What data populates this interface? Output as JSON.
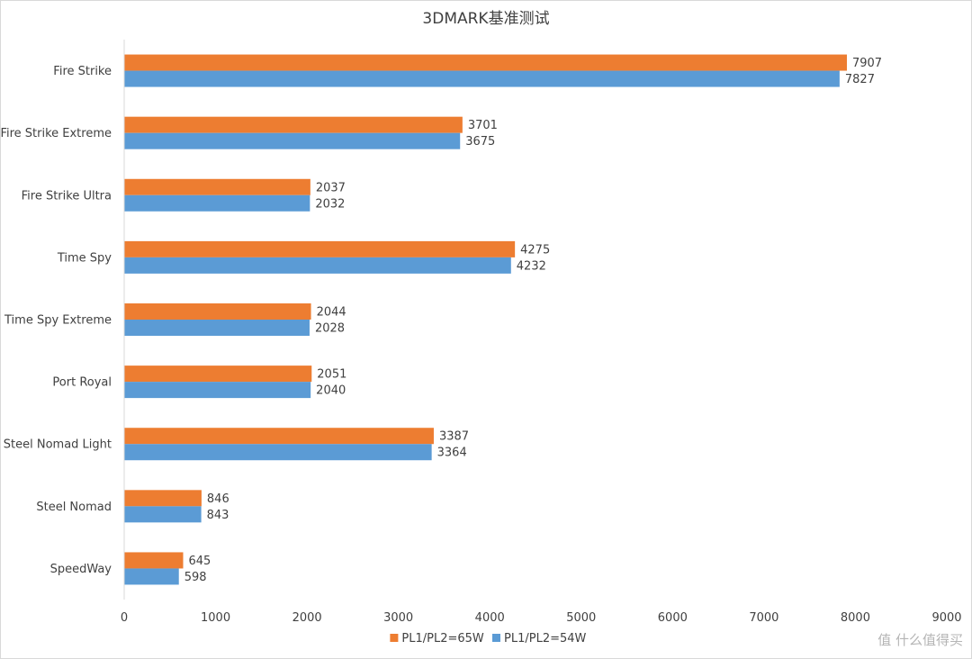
{
  "chart_data": {
    "type": "bar",
    "orientation": "horizontal",
    "title": "3DMARK基准测试",
    "categories": [
      "Fire Strike",
      "Fire Strike Extreme",
      "Fire Strike Ultra",
      "Time Spy",
      "Time Spy Extreme",
      "Port Royal",
      "Steel Nomad Light",
      "Steel Nomad",
      "SpeedWay"
    ],
    "series": [
      {
        "name": "PL1/PL2=65W",
        "color": "#ED7D31",
        "values": [
          7907,
          3701,
          2037,
          4275,
          2044,
          2051,
          3387,
          846,
          645
        ]
      },
      {
        "name": "PL1/PL2=54W",
        "color": "#5B9BD5",
        "values": [
          7827,
          3675,
          2032,
          4232,
          2028,
          2040,
          3364,
          843,
          598
        ]
      }
    ],
    "xlim": [
      0,
      9000
    ],
    "xticks": [
      0,
      1000,
      2000,
      3000,
      4000,
      5000,
      6000,
      7000,
      8000,
      9000
    ],
    "xlabel": "",
    "ylabel": "",
    "grid": false,
    "legend_position": "bottom",
    "data_labels": true
  },
  "watermark": {
    "text": "值 什么值得买"
  }
}
